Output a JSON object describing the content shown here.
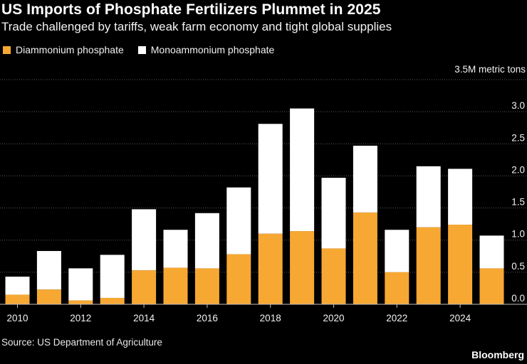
{
  "chart_data": {
    "type": "bar",
    "stacked": true,
    "title": "US Imports of Phosphate Fertilizers Plummet in 2025",
    "subtitle": "Trade challenged by tariffs, weak farm economy and tight global supplies",
    "unit_label": "3.5M metric tons",
    "categories": [
      "2010",
      "2011",
      "2012",
      "2013",
      "2014",
      "2015",
      "2016",
      "2017",
      "2018",
      "2019",
      "2020",
      "2021",
      "2022",
      "2023",
      "2024",
      "2025"
    ],
    "x_tick_labels": [
      "2010",
      "2012",
      "2014",
      "2016",
      "2018",
      "2020",
      "2022",
      "2024"
    ],
    "y_tick_labels": [
      "0.0",
      "0.5",
      "1.0",
      "1.5",
      "2.0",
      "2.5",
      "3.0"
    ],
    "y_ticks": [
      0,
      0.5,
      1.0,
      1.5,
      2.0,
      2.5,
      3.0
    ],
    "ylim": [
      0,
      3.5
    ],
    "series": [
      {
        "name": "Diammonium phosphate",
        "color": "#f7a833",
        "values": [
          0.15,
          0.23,
          0.06,
          0.1,
          0.53,
          0.57,
          0.56,
          0.78,
          1.1,
          1.14,
          0.87,
          1.43,
          0.5,
          1.2,
          1.24,
          0.56
        ]
      },
      {
        "name": "Monoammonium phosphate",
        "color": "#ffffff",
        "values": [
          0.28,
          0.6,
          0.5,
          0.67,
          0.95,
          0.59,
          0.86,
          1.04,
          1.71,
          1.91,
          1.1,
          1.04,
          0.66,
          0.95,
          0.87,
          0.51
        ]
      }
    ],
    "legend_position": "top-left",
    "grid": true
  },
  "source": "Source: US Department of Agriculture",
  "brand": "Bloomberg"
}
